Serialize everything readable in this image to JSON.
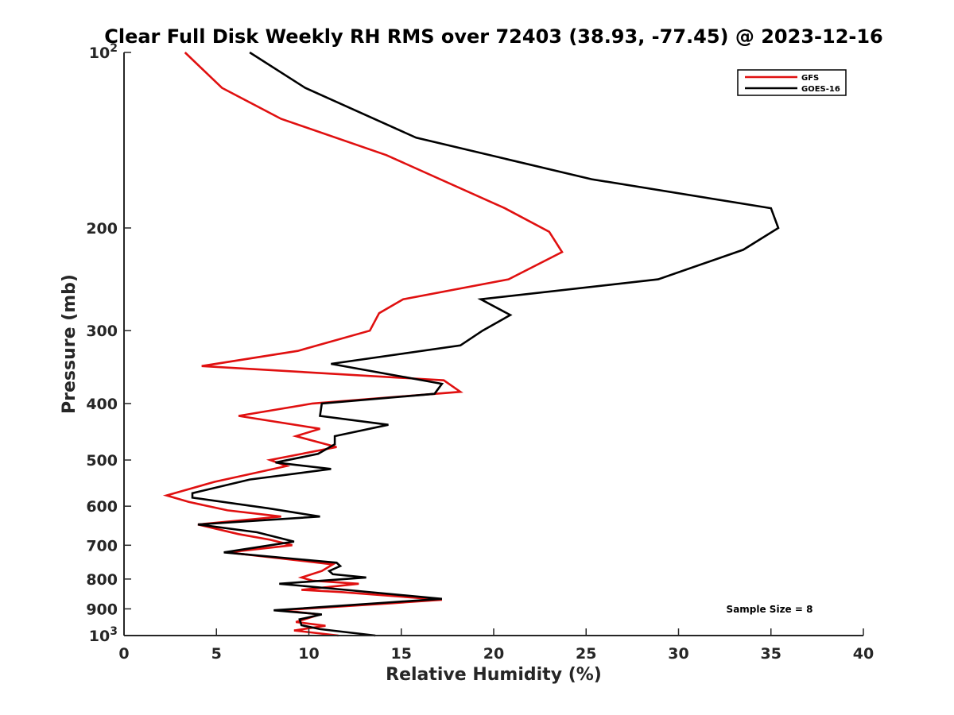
{
  "chart_data": {
    "type": "line",
    "title": "Clear Full Disk Weekly RH RMS over 72403 (38.93, -77.45) @ 2023-12-16",
    "xlabel": "Relative Humidity (%)",
    "ylabel": "Pressure (mb)",
    "xlim": [
      0,
      40
    ],
    "ylim": [
      100,
      1000
    ],
    "y_scale": "log",
    "y_reversed": true,
    "grid": false,
    "legend_position": "top-right",
    "x_ticks": [
      "0",
      "5",
      "10",
      "15",
      "20",
      "25",
      "30",
      "35",
      "40"
    ],
    "y_ticks": [
      {
        "value": 100,
        "base": "10",
        "exp": "2"
      },
      {
        "value": 200,
        "label": "200"
      },
      {
        "value": 300,
        "label": "300"
      },
      {
        "value": 400,
        "label": "400"
      },
      {
        "value": 500,
        "label": "500"
      },
      {
        "value": 600,
        "label": "600"
      },
      {
        "value": 700,
        "label": "700"
      },
      {
        "value": 800,
        "label": "800"
      },
      {
        "value": 900,
        "label": "900"
      },
      {
        "value": 1000,
        "base": "10",
        "exp": "3"
      }
    ],
    "annotation": "Sample Size = 8",
    "series": [
      {
        "name": "GFS",
        "color": "#e01010",
        "points": [
          [
            3.3,
            100
          ],
          [
            5.3,
            115
          ],
          [
            8.5,
            130
          ],
          [
            14.2,
            150
          ],
          [
            20.6,
            185
          ],
          [
            23.0,
            203
          ],
          [
            23.7,
            220
          ],
          [
            20.8,
            245
          ],
          [
            15.1,
            265
          ],
          [
            13.8,
            280
          ],
          [
            13.3,
            300
          ],
          [
            9.4,
            325
          ],
          [
            4.2,
            345
          ],
          [
            17.3,
            365
          ],
          [
            18.2,
            382
          ],
          [
            10.2,
            400
          ],
          [
            6.2,
            420
          ],
          [
            10.6,
            442
          ],
          [
            9.3,
            455
          ],
          [
            11.5,
            475
          ],
          [
            7.9,
            500
          ],
          [
            8.8,
            512
          ],
          [
            4.9,
            545
          ],
          [
            2.3,
            575
          ],
          [
            3.5,
            590
          ],
          [
            5.6,
            610
          ],
          [
            8.5,
            625
          ],
          [
            4.0,
            645
          ],
          [
            6.2,
            670
          ],
          [
            7.9,
            685
          ],
          [
            9.1,
            700
          ],
          [
            5.6,
            720
          ],
          [
            11.3,
            755
          ],
          [
            10.7,
            775
          ],
          [
            9.6,
            795
          ],
          [
            10.2,
            805
          ],
          [
            12.7,
            815
          ],
          [
            9.6,
            835
          ],
          [
            11.7,
            842
          ],
          [
            17.2,
            868
          ],
          [
            14.5,
            880
          ],
          [
            8.5,
            905
          ],
          [
            10.6,
            920
          ],
          [
            9.3,
            948
          ],
          [
            10.9,
            962
          ],
          [
            9.2,
            980
          ],
          [
            11.6,
            1000
          ]
        ]
      },
      {
        "name": "GOES-16",
        "color": "#000000",
        "points": [
          [
            6.8,
            100
          ],
          [
            9.8,
            115
          ],
          [
            15.8,
            140
          ],
          [
            25.3,
            165
          ],
          [
            35.0,
            185
          ],
          [
            35.4,
            200
          ],
          [
            33.5,
            218
          ],
          [
            28.9,
            245
          ],
          [
            19.3,
            265
          ],
          [
            20.9,
            282
          ],
          [
            19.4,
            300
          ],
          [
            18.2,
            318
          ],
          [
            11.2,
            342
          ],
          [
            17.2,
            370
          ],
          [
            16.8,
            385
          ],
          [
            10.7,
            400
          ],
          [
            10.6,
            420
          ],
          [
            14.3,
            435
          ],
          [
            11.4,
            455
          ],
          [
            11.4,
            470
          ],
          [
            10.5,
            488
          ],
          [
            8.2,
            505
          ],
          [
            11.2,
            518
          ],
          [
            6.8,
            540
          ],
          [
            3.7,
            570
          ],
          [
            3.7,
            580
          ],
          [
            7.8,
            605
          ],
          [
            10.6,
            625
          ],
          [
            4.0,
            645
          ],
          [
            7.2,
            665
          ],
          [
            9.2,
            690
          ],
          [
            5.4,
            720
          ],
          [
            11.5,
            750
          ],
          [
            11.7,
            760
          ],
          [
            11.1,
            775
          ],
          [
            11.3,
            785
          ],
          [
            13.1,
            795
          ],
          [
            8.4,
            815
          ],
          [
            12.0,
            835
          ],
          [
            17.2,
            865
          ],
          [
            14.2,
            878
          ],
          [
            8.1,
            905
          ],
          [
            10.7,
            920
          ],
          [
            9.5,
            938
          ],
          [
            9.6,
            960
          ],
          [
            10.6,
            975
          ],
          [
            13.6,
            1000
          ]
        ]
      }
    ]
  }
}
